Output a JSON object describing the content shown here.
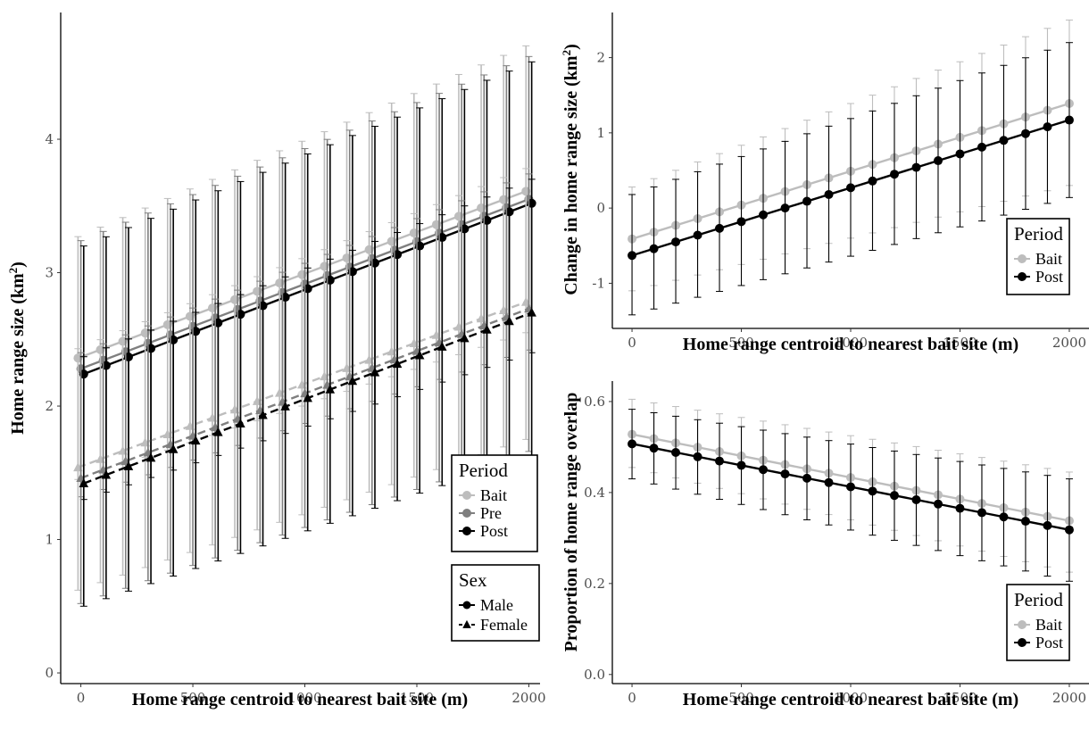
{
  "colors": {
    "bait": "#bdbdbd",
    "pre": "#7f7f7f",
    "post": "#000000"
  },
  "chart_data": [
    {
      "id": "A",
      "type": "line",
      "xlabel": "Home range centroid to nearest bait site (m)",
      "ylabel_main": "Home range size",
      "ylabel_unit": "(km",
      "ylabel_sup": "2",
      "ylabel_close": ")",
      "xlim": [
        -90,
        2050
      ],
      "ylim": [
        -0.08,
        4.95
      ],
      "x_ticks": [
        0,
        500,
        1000,
        1500,
        2000
      ],
      "x_tick_labels": [
        "0",
        "500",
        "1000",
        "1500",
        "2000"
      ],
      "y_ticks": [
        0,
        1,
        2,
        3,
        4
      ],
      "y_tick_labels": [
        "0",
        "1",
        "2",
        "3",
        "4"
      ],
      "x_step": 100,
      "series": [
        {
          "period": "Bait",
          "sex": "Male",
          "color": "#bdbdbd",
          "marker": "circle",
          "dash": "solid",
          "start": 2.36,
          "end": 3.61,
          "lo_start": 1.45,
          "lo_end": 2.55,
          "hi_start": 3.27,
          "hi_end": 4.7
        },
        {
          "period": "Pre",
          "sex": "Male",
          "color": "#7f7f7f",
          "marker": "circle",
          "dash": "solid",
          "start": 2.28,
          "end": 3.55,
          "lo_start": 1.32,
          "lo_end": 2.42,
          "hi_start": 3.24,
          "hi_end": 4.62
        },
        {
          "period": "Post",
          "sex": "Male",
          "color": "#000000",
          "marker": "circle",
          "dash": "solid",
          "start": 2.24,
          "end": 3.52,
          "lo_start": 1.3,
          "lo_end": 2.4,
          "hi_start": 3.2,
          "hi_end": 4.58
        },
        {
          "period": "Bait",
          "sex": "Female",
          "color": "#bdbdbd",
          "marker": "triangle",
          "dash": "dashed",
          "start": 1.54,
          "end": 2.78,
          "lo_start": 0.62,
          "lo_end": 1.75,
          "hi_start": 2.43,
          "hi_end": 3.78
        },
        {
          "period": "Pre",
          "sex": "Female",
          "color": "#7f7f7f",
          "marker": "triangle",
          "dash": "dashed",
          "start": 1.46,
          "end": 2.73,
          "lo_start": 0.52,
          "lo_end": 1.66,
          "hi_start": 2.4,
          "hi_end": 3.74
        },
        {
          "period": "Post",
          "sex": "Female",
          "color": "#000000",
          "marker": "triangle",
          "dash": "dashed",
          "start": 1.42,
          "end": 2.7,
          "lo_start": 0.5,
          "lo_end": 1.63,
          "hi_start": 2.37,
          "hi_end": 3.7
        }
      ],
      "legend_period": {
        "title": "Period",
        "items": [
          {
            "label": "Bait",
            "color": "#bdbdbd"
          },
          {
            "label": "Pre",
            "color": "#7f7f7f"
          },
          {
            "label": "Post",
            "color": "#000000"
          }
        ]
      },
      "legend_sex": {
        "title": "Sex",
        "items": [
          {
            "label": "Male",
            "marker": "circle",
            "dash": "solid"
          },
          {
            "label": "Female",
            "marker": "triangle",
            "dash": "dashed"
          }
        ]
      }
    },
    {
      "id": "B",
      "type": "line",
      "xlabel": "Home range centroid to nearest bait site (m)",
      "ylabel_main": "Change in home range size",
      "ylabel_unit": "(km",
      "ylabel_sup": "2",
      "ylabel_close": ")",
      "xlim": [
        -90,
        2090
      ],
      "ylim": [
        -1.6,
        2.6
      ],
      "x_ticks": [
        0,
        500,
        1000,
        1500,
        2000
      ],
      "x_tick_labels": [
        "0",
        "500",
        "1000",
        "1500",
        "2000"
      ],
      "y_ticks": [
        -1,
        0,
        1,
        2
      ],
      "y_tick_labels": [
        "-1",
        "0",
        "1",
        "2"
      ],
      "x_step": 100,
      "series": [
        {
          "period": "Bait",
          "color": "#bdbdbd",
          "marker": "circle",
          "dash": "solid",
          "start": -0.41,
          "end": 1.39,
          "lo_start": -1.1,
          "lo_end": 0.3,
          "hi_start": 0.28,
          "hi_end": 2.5
        },
        {
          "period": "Post",
          "color": "#000000",
          "marker": "circle",
          "dash": "solid",
          "start": -0.63,
          "end": 1.17,
          "lo_start": -1.42,
          "lo_end": 0.14,
          "hi_start": 0.18,
          "hi_end": 2.2
        }
      ],
      "legend_period": {
        "title": "Period",
        "items": [
          {
            "label": "Bait",
            "color": "#bdbdbd"
          },
          {
            "label": "Post",
            "color": "#000000"
          }
        ]
      }
    },
    {
      "id": "C",
      "type": "line",
      "xlabel": "Home range centroid to nearest bait site (m)",
      "ylabel_main": "Proportion of home range overlap",
      "ylabel_unit": "",
      "ylabel_sup": "",
      "ylabel_close": "",
      "xlim": [
        -90,
        2090
      ],
      "ylim": [
        -0.02,
        0.645
      ],
      "x_ticks": [
        0,
        500,
        1000,
        1500,
        2000
      ],
      "x_tick_labels": [
        "0",
        "500",
        "1000",
        "1500",
        "2000"
      ],
      "y_ticks": [
        0,
        0.2,
        0.4,
        0.6
      ],
      "y_tick_labels": [
        "0.0",
        "0.2",
        "0.4",
        "0.6"
      ],
      "x_step": 100,
      "series": [
        {
          "period": "Bait",
          "color": "#bdbdbd",
          "marker": "circle",
          "dash": "solid",
          "start": 0.528,
          "end": 0.338,
          "lo_start": 0.455,
          "lo_end": 0.225,
          "hi_start": 0.605,
          "hi_end": 0.445
        },
        {
          "period": "Post",
          "color": "#000000",
          "marker": "circle",
          "dash": "solid",
          "start": 0.507,
          "end": 0.318,
          "lo_start": 0.43,
          "lo_end": 0.205,
          "hi_start": 0.583,
          "hi_end": 0.43
        }
      ],
      "legend_period": {
        "title": "Period",
        "items": [
          {
            "label": "Bait",
            "color": "#bdbdbd"
          },
          {
            "label": "Post",
            "color": "#000000"
          }
        ]
      }
    }
  ]
}
